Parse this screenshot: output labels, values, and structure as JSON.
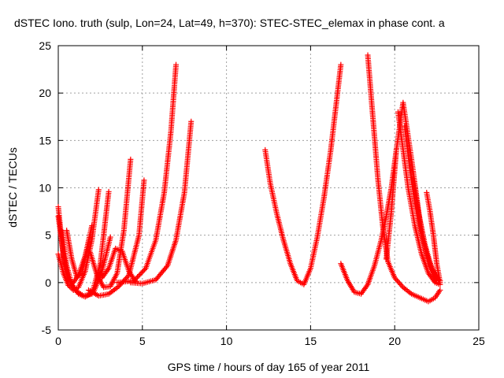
{
  "chart_data": {
    "type": "scatter",
    "title": "dSTEC Iono. truth (sulp, Lon=24, Lat=49, h=370): STEC-STEC_elemax in phase cont. a",
    "xlabel": "GPS time / hours of day 165 of year 2011",
    "ylabel": "dSTEC  / TECUs",
    "xlim": [
      0,
      25
    ],
    "ylim": [
      -5,
      25
    ],
    "xticks": [
      0,
      5,
      10,
      15,
      20,
      25
    ],
    "yticks": [
      -5,
      0,
      5,
      10,
      15,
      20,
      25
    ],
    "grid": true,
    "marker": "plus",
    "color": "#ff0000",
    "series": [
      {
        "x": [
          0.0,
          0.2,
          0.4,
          0.6,
          0.9,
          1.2,
          1.6,
          2.0
        ],
        "y": [
          8.0,
          4.5,
          1.5,
          0.3,
          0.0,
          0.8,
          2.8,
          6.0
        ]
      },
      {
        "x": [
          0.0,
          0.3,
          0.6,
          0.9,
          1.2,
          1.6,
          2.0,
          2.4
        ],
        "y": [
          3.0,
          1.0,
          -0.3,
          -0.8,
          -0.5,
          1.2,
          4.5,
          9.8
        ]
      },
      {
        "x": [
          0.0,
          0.3,
          0.6,
          1.0,
          1.5,
          2.0,
          2.5,
          3.0
        ],
        "y": [
          7.0,
          3.0,
          0.5,
          -0.8,
          -1.4,
          -1.2,
          2.0,
          9.6
        ]
      },
      {
        "x": [
          0.2,
          0.5,
          0.8,
          1.2,
          1.6,
          2.1,
          2.6,
          3.1
        ],
        "y": [
          5.5,
          1.8,
          -0.2,
          -1.2,
          -1.5,
          -1.0,
          1.2,
          4.8
        ]
      },
      {
        "x": [
          0.5,
          0.8,
          1.1,
          1.4,
          1.8
        ],
        "y": [
          5.5,
          2.5,
          0.6,
          1.0,
          4.2
        ]
      },
      {
        "x": [
          1.9,
          2.3,
          2.7,
          3.1,
          3.5,
          3.9,
          4.3
        ],
        "y": [
          3.2,
          0.8,
          -0.5,
          -0.4,
          1.0,
          5.5,
          13.0
        ]
      },
      {
        "x": [
          1.8,
          2.4,
          3.0,
          3.6,
          4.2,
          4.8,
          5.1
        ],
        "y": [
          -0.8,
          -1.4,
          -1.2,
          -0.4,
          0.8,
          5.0,
          10.8
        ]
      },
      {
        "x": [
          2.6,
          3.0,
          3.4,
          3.8,
          4.2,
          4.6
        ],
        "y": [
          0.5,
          1.5,
          3.6,
          3.3,
          1.2,
          0.1
        ]
      },
      {
        "x": [
          3.5,
          4.5,
          5.2,
          5.8,
          6.3,
          6.7,
          7.0
        ],
        "y": [
          0.0,
          0.2,
          1.5,
          4.5,
          9.5,
          16.0,
          23.0
        ]
      },
      {
        "x": [
          4.3,
          5.0,
          5.8,
          6.5,
          7.0,
          7.5,
          7.9
        ],
        "y": [
          0.0,
          -0.1,
          0.3,
          1.8,
          4.5,
          9.5,
          17.0
        ]
      },
      {
        "x": [
          12.3,
          12.6,
          13.0,
          13.4,
          13.8,
          14.2,
          14.6,
          15.0,
          15.4,
          15.8,
          16.2,
          16.5,
          16.8
        ],
        "y": [
          14.0,
          10.5,
          7.2,
          4.4,
          2.0,
          0.2,
          -0.2,
          1.5,
          4.8,
          9.0,
          14.0,
          18.5,
          23.0
        ]
      },
      {
        "x": [
          16.8,
          17.2,
          17.6,
          18.0,
          18.4,
          18.8,
          19.2,
          19.5,
          19.8,
          20.1
        ],
        "y": [
          2.0,
          0.2,
          -1.0,
          -1.2,
          -0.2,
          1.8,
          4.5,
          7.0,
          10.0,
          14.0
        ]
      },
      {
        "x": [
          18.4,
          18.7,
          19.0,
          19.3,
          19.6,
          20.0,
          20.5,
          21.0,
          21.5,
          22.0,
          22.4,
          22.7
        ],
        "y": [
          24.0,
          17.5,
          11.0,
          5.8,
          2.2,
          0.5,
          -0.5,
          -1.2,
          -1.6,
          -2.0,
          -1.6,
          -0.8
        ]
      },
      {
        "x": [
          19.5,
          19.8,
          20.1,
          20.5,
          21.0,
          21.5,
          22.0,
          22.5
        ],
        "y": [
          2.5,
          7.5,
          14.0,
          19.0,
          13.0,
          6.5,
          2.0,
          0.0
        ]
      },
      {
        "x": [
          20.2,
          20.5,
          20.8,
          21.2,
          21.6,
          22.0,
          22.4,
          22.7
        ],
        "y": [
          18.0,
          14.0,
          10.0,
          6.0,
          3.0,
          1.0,
          0.0,
          -0.2
        ]
      },
      {
        "x": [
          20.6,
          20.9,
          21.2,
          21.6,
          22.0,
          22.4,
          22.7
        ],
        "y": [
          16.5,
          12.0,
          8.5,
          5.0,
          2.5,
          0.8,
          0.2
        ]
      },
      {
        "x": [
          21.1,
          21.4,
          21.8,
          22.2,
          22.6
        ],
        "y": [
          11.0,
          7.5,
          4.0,
          1.5,
          0.3
        ]
      },
      {
        "x": [
          21.9,
          22.1,
          22.3,
          22.5,
          22.7
        ],
        "y": [
          9.5,
          7.5,
          5.0,
          2.0,
          0.0
        ]
      }
    ]
  }
}
